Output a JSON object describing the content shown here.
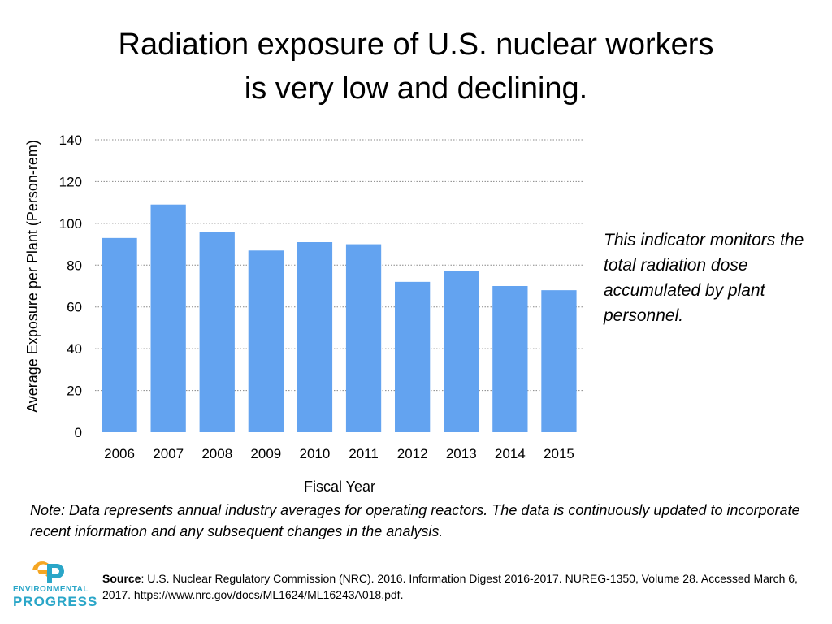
{
  "title": {
    "line1": "Radiation exposure of U.S. nuclear workers",
    "line2": "is very low and declining."
  },
  "indicator": "This indicator monitors the total radiation dose accumulated by plant personnel.",
  "note": "Note: Data represents annual industry averages for operating reactors. The data is continuously updated to incorporate recent information and any subsequent changes in the analysis.",
  "source": {
    "label": "Source",
    "text": ": U.S. Nuclear Regulatory Commission (NRC). 2016. Information Digest 2016-2017. NUREG-1350, Volume 28. Accessed March 6, 2017. https://www.nrc.gov/docs/ML1624/ML16243A018.pdf."
  },
  "logo": {
    "word1": "ENVIRONMENTAL",
    "word2": "PROGRESS",
    "colors": {
      "orange": "#f5a623",
      "blue": "#2aa6c8"
    }
  },
  "chart_data": {
    "type": "bar",
    "categories": [
      "2006",
      "2007",
      "2008",
      "2009",
      "2010",
      "2011",
      "2012",
      "2013",
      "2014",
      "2015"
    ],
    "values": [
      93,
      109,
      96,
      87,
      91,
      90,
      72,
      77,
      70,
      68
    ],
    "xlabel": "Fiscal Year",
    "ylabel": "Average Exposure per Plant (Person-rem)",
    "ylim": [
      0,
      140
    ],
    "yticks": [
      0,
      20,
      40,
      60,
      80,
      100,
      120,
      140
    ],
    "grid": true,
    "bar_color": "#63a3f0"
  }
}
